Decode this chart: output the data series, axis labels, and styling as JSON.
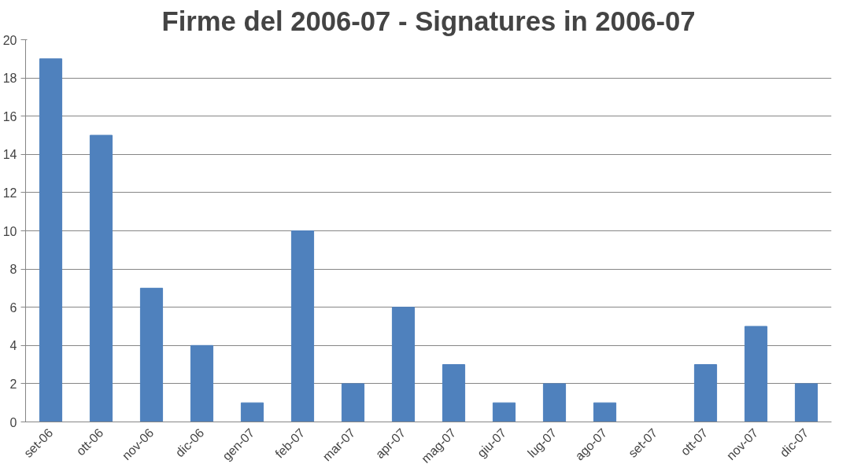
{
  "chart_data": {
    "type": "bar",
    "title": "Firme del 2006-07 - Signatures in 2006-07",
    "categories": [
      "set-06",
      "ott-06",
      "nov-06",
      "dic-06",
      "gen-07",
      "feb-07",
      "mar-07",
      "apr-07",
      "mag-07",
      "giu-07",
      "lug-07",
      "ago-07",
      "set-07",
      "ott-07",
      "nov-07",
      "dic-07"
    ],
    "values": [
      19,
      15,
      7,
      4,
      1,
      10,
      2,
      6,
      3,
      1,
      2,
      1,
      0,
      3,
      5,
      2
    ],
    "color": "#4f81bd",
    "ylim": [
      0,
      20
    ],
    "yticks": [
      0,
      2,
      4,
      6,
      8,
      10,
      12,
      14,
      16,
      18,
      20
    ],
    "grid": "y"
  }
}
